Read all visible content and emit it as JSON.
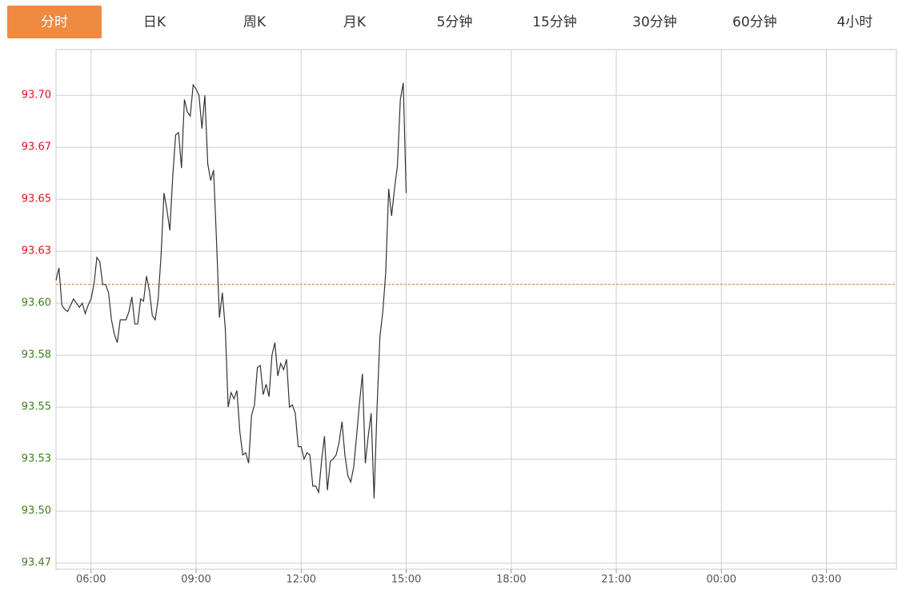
{
  "tabs": [
    "分时",
    "日K",
    "周K",
    "月K",
    "5分钟",
    "15分钟",
    "30分钟",
    "60分钟",
    "4小时"
  ],
  "active_tab": 0,
  "chart_data": {
    "type": "line",
    "x": [
      "05:00",
      "05:05",
      "05:10",
      "05:15",
      "05:20",
      "05:25",
      "05:30",
      "05:35",
      "05:40",
      "05:45",
      "05:50",
      "05:55",
      "06:00",
      "06:05",
      "06:10",
      "06:15",
      "06:20",
      "06:25",
      "06:30",
      "06:35",
      "06:40",
      "06:45",
      "06:50",
      "06:55",
      "07:00",
      "07:05",
      "07:10",
      "07:15",
      "07:20",
      "07:25",
      "07:30",
      "07:35",
      "07:40",
      "07:45",
      "07:50",
      "07:55",
      "08:00",
      "08:05",
      "08:10",
      "08:15",
      "08:20",
      "08:25",
      "08:30",
      "08:35",
      "08:40",
      "08:45",
      "08:50",
      "08:55",
      "09:00",
      "09:05",
      "09:10",
      "09:15",
      "09:20",
      "09:25",
      "09:30",
      "09:35",
      "09:40",
      "09:45",
      "09:50",
      "09:55",
      "10:00",
      "10:05",
      "10:10",
      "10:15",
      "10:20",
      "10:25",
      "10:30",
      "10:35",
      "10:40",
      "10:45",
      "10:50",
      "10:55",
      "11:00",
      "11:05",
      "11:10",
      "11:15",
      "11:20",
      "11:25",
      "11:30",
      "11:35",
      "11:40",
      "11:45",
      "11:50",
      "11:55",
      "12:00",
      "12:05",
      "12:10",
      "12:15",
      "12:20",
      "12:25",
      "12:30",
      "12:35",
      "12:40",
      "12:45",
      "12:50",
      "12:55",
      "13:00",
      "13:05",
      "13:10",
      "13:15",
      "13:20",
      "13:25",
      "13:30",
      "13:35",
      "13:40",
      "13:45",
      "13:50",
      "13:55",
      "14:00",
      "14:05",
      "14:10",
      "14:15",
      "14:20",
      "14:25",
      "14:30",
      "14:35",
      "14:40",
      "14:45",
      "14:50",
      "14:55",
      "15:00"
    ],
    "series": [
      {
        "color": "#333333",
        "values": [
          93.611,
          93.617,
          93.599,
          93.597,
          93.596,
          93.599,
          93.602,
          93.6,
          93.598,
          93.6,
          93.595,
          93.599,
          93.602,
          93.609,
          93.622,
          93.62,
          93.609,
          93.609,
          93.605,
          93.592,
          93.585,
          93.581,
          93.592,
          93.592,
          93.592,
          93.596,
          93.603,
          93.59,
          93.59,
          93.602,
          93.601,
          93.613,
          93.606,
          93.594,
          93.592,
          93.602,
          93.623,
          93.653,
          93.645,
          93.635,
          93.661,
          93.681,
          93.682,
          93.665,
          93.698,
          93.692,
          93.69,
          93.705,
          93.703,
          93.7,
          93.684,
          93.7,
          93.667,
          93.659,
          93.664,
          93.63,
          93.593,
          93.605,
          93.588,
          93.55,
          93.557,
          93.554,
          93.558,
          93.538,
          93.527,
          93.528,
          93.523,
          93.546,
          93.551,
          93.569,
          93.57,
          93.556,
          93.561,
          93.555,
          93.575,
          93.581,
          93.565,
          93.571,
          93.568,
          93.573,
          93.55,
          93.551,
          93.547,
          93.531,
          93.531,
          93.525,
          93.528,
          93.527,
          93.512,
          93.512,
          93.509,
          93.524,
          93.536,
          93.51,
          93.524,
          93.525,
          93.527,
          93.533,
          93.543,
          93.527,
          93.517,
          93.514,
          93.521,
          93.536,
          93.552,
          93.566,
          93.523,
          93.536,
          93.547,
          93.506,
          93.549,
          93.584,
          93.596,
          93.615,
          93.655,
          93.642,
          93.655,
          93.666,
          93.698,
          93.706,
          93.653
        ]
      }
    ],
    "reference_line": {
      "value": 93.609,
      "color": "#e0702a"
    },
    "up_color": "#e0101a",
    "down_color": "#3d7f1e",
    "xlim": [
      "05:00",
      "05:00"
    ],
    "xticks": [
      "06:00",
      "09:00",
      "12:00",
      "15:00",
      "18:00",
      "21:00",
      "00:00",
      "03:00"
    ],
    "ylim": [
      93.472,
      93.722
    ],
    "yticks": [
      {
        "value": 93.475,
        "label": "93.47"
      },
      {
        "value": 93.5,
        "label": "93.50"
      },
      {
        "value": 93.525,
        "label": "93.53"
      },
      {
        "value": 93.55,
        "label": "93.55"
      },
      {
        "value": 93.575,
        "label": "93.58"
      },
      {
        "value": 93.6,
        "label": "93.60"
      },
      {
        "value": 93.625,
        "label": "93.63"
      },
      {
        "value": 93.65,
        "label": "93.65"
      },
      {
        "value": 93.675,
        "label": "93.67"
      },
      {
        "value": 93.7,
        "label": "93.70"
      }
    ],
    "grid": true
  }
}
